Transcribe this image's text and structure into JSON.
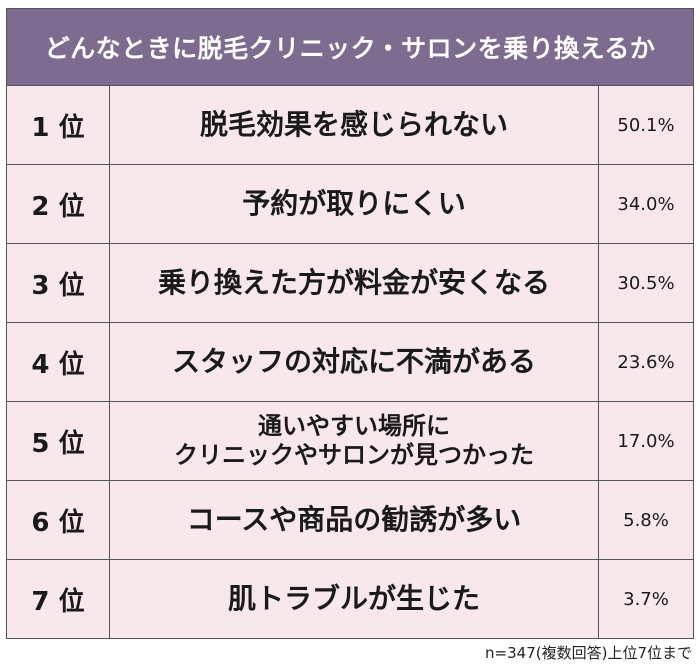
{
  "chart_data": {
    "type": "table",
    "title": "どんなときに脱毛クリニック・サロンを乗り換えるか",
    "rows": [
      {
        "rank": "1 位",
        "reason": "脱毛効果を感じられない",
        "value": 50.1,
        "value_label": "50.1%"
      },
      {
        "rank": "2 位",
        "reason": "予約が取りにくい",
        "value": 34.0,
        "value_label": "34.0%"
      },
      {
        "rank": "3 位",
        "reason": "乗り換えた方が料金が安くなる",
        "value": 30.5,
        "value_label": "30.5%"
      },
      {
        "rank": "4 位",
        "reason": "スタッフの対応に不満がある",
        "value": 23.6,
        "value_label": "23.6%"
      },
      {
        "rank": "5 位",
        "reason": "通いやすい場所に\nクリニックやサロンが見つかった",
        "value": 17.0,
        "value_label": "17.0%"
      },
      {
        "rank": "6 位",
        "reason": "コースや商品の勧誘が多い",
        "value": 5.8,
        "value_label": "5.8%"
      },
      {
        "rank": "7 位",
        "reason": "肌トラブルが生じた",
        "value": 3.7,
        "value_label": "3.7%"
      }
    ],
    "note": "n=347(複数回答)上位7位まで"
  },
  "colors": {
    "header_background": "#7d6c8f",
    "row_background": "#f8e8ec",
    "border": "#555555"
  }
}
